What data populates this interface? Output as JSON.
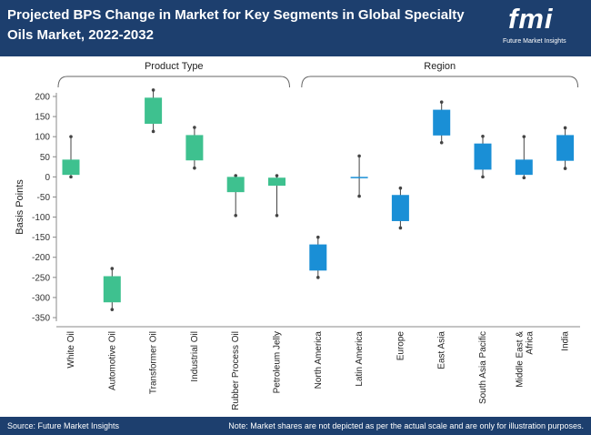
{
  "header": {
    "title": "Projected BPS Change in Market for Key Segments in Global Specialty Oils Market, 2022-2032",
    "logo_mark": "fmi",
    "logo_text": "Future Market Insights"
  },
  "footer": {
    "source": "Source: Future Market Insights",
    "note": "Note: Market shares are not depicted as per the actual scale and are only for illustration purposes."
  },
  "colors": {
    "header_bg": "#1d3f6e",
    "product_type": "#3ec18f",
    "region": "#1a8fd6",
    "whisker": "#444444"
  },
  "chart_data": {
    "type": "box",
    "ylabel": "Basis Points",
    "ylim": [
      -350,
      200
    ],
    "yticks": [
      200,
      150,
      100,
      50,
      0,
      -50,
      -100,
      -150,
      -200,
      -250,
      -300,
      -350
    ],
    "groups": [
      {
        "name": "Product Type",
        "categories": [
          {
            "label": "White Oil",
            "low": 0,
            "q1": 5,
            "q3": 43,
            "high": 100
          },
          {
            "label": "Automotive Oil",
            "low": -330,
            "q1": -312,
            "q3": -247,
            "high": -228
          },
          {
            "label": "Transformer Oil",
            "low": 113,
            "q1": 132,
            "q3": 197,
            "high": 216
          },
          {
            "label": "Industrial Oil",
            "low": 22,
            "q1": 41,
            "q3": 104,
            "high": 123
          },
          {
            "label": "Rubber Process Oil",
            "low": -96,
            "q1": -38,
            "q3": 0,
            "high": 3
          },
          {
            "label": "Petroleum Jelly",
            "low": -96,
            "q1": -22,
            "q3": -2,
            "high": 3
          }
        ]
      },
      {
        "name": "Region",
        "categories": [
          {
            "label": "North America",
            "low": -250,
            "q1": -233,
            "q3": -168,
            "high": -150
          },
          {
            "label": "Latin America",
            "low": -48,
            "q1": 0,
            "q3": 0,
            "high": 52
          },
          {
            "label": "Europe",
            "low": -127,
            "q1": -110,
            "q3": -45,
            "high": -28
          },
          {
            "label": "East Asia",
            "low": 85,
            "q1": 103,
            "q3": 167,
            "high": 186
          },
          {
            "label": "South Asia Pacific",
            "low": 0,
            "q1": 18,
            "q3": 83,
            "high": 101
          },
          {
            "label": "Middle East & Africa",
            "low": -2,
            "q1": 5,
            "q3": 43,
            "high": 100
          },
          {
            "label": "India",
            "low": 21,
            "q1": 40,
            "q3": 104,
            "high": 122
          }
        ]
      }
    ]
  }
}
